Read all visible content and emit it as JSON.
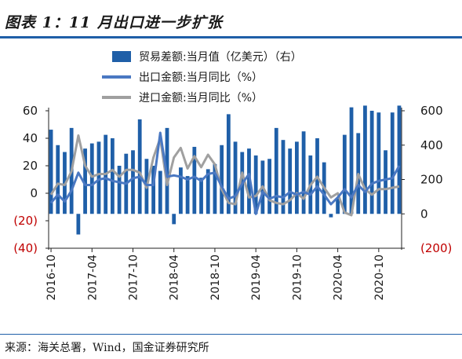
{
  "header": {
    "title": "图表 1：11 月出口进一步扩张"
  },
  "footer": {
    "source": "来源：海关总署，Wind，国金证券研究所"
  },
  "chart_data": {
    "type": "bar",
    "left_axis": {
      "range": [
        -40,
        60
      ],
      "ticks": [
        "60",
        "40",
        "20",
        "0",
        "(20)",
        "(40)"
      ],
      "tick_values": [
        60,
        40,
        20,
        0,
        -20,
        -40
      ]
    },
    "right_axis": {
      "range": [
        -200,
        600
      ],
      "ticks": [
        "600",
        "400",
        "200",
        "0",
        "(200)"
      ],
      "tick_values": [
        600,
        400,
        200,
        0,
        -200
      ]
    },
    "x_ticks": [
      "2016-10",
      "2017-04",
      "2017-10",
      "2018-04",
      "2018-10",
      "2019-04",
      "2019-10",
      "2020-04",
      "2020-10"
    ],
    "x_tick_months": [
      0,
      6,
      12,
      18,
      24,
      30,
      36,
      42,
      48
    ],
    "legend_placement": "top",
    "series": [
      {
        "name": "贸易差额:当月值（亿美元）（右）",
        "type": "bar",
        "axis": "right",
        "color": "#1f5fa8",
        "values": [
          490,
          400,
          360,
          500,
          -120,
          380,
          410,
          420,
          460,
          440,
          280,
          350,
          370,
          550,
          320,
          280,
          250,
          500,
          -60,
          270,
          220,
          390,
          210,
          260,
          290,
          400,
          580,
          420,
          360,
          380,
          340,
          310,
          320,
          500,
          430,
          380,
          420,
          480,
          340,
          440,
          300,
          -20,
          90,
          460,
          620,
          470,
          630,
          600,
          590,
          370,
          590,
          630
        ]
      },
      {
        "name": "出口金额:当月同比（%）",
        "type": "line",
        "axis": "left",
        "color": "#4a78c2",
        "values": [
          -7,
          -1,
          -6,
          2,
          15,
          6,
          6,
          10,
          11,
          9,
          8,
          7,
          11,
          12,
          6,
          6,
          44,
          12,
          13,
          12,
          10,
          12,
          9,
          14,
          15,
          5,
          -4,
          -2,
          7,
          14,
          -15,
          1,
          -4,
          -2,
          -3,
          1,
          -1,
          1,
          -1,
          5,
          -1,
          -8,
          -3,
          3,
          -3,
          6,
          1,
          7,
          9,
          10,
          11,
          20
        ]
      },
      {
        "name": "进口金额:当月同比（%）",
        "type": "line",
        "axis": "left",
        "color": "#a0a0a0",
        "values": [
          -1,
          7,
          6,
          16,
          42,
          20,
          12,
          14,
          14,
          17,
          12,
          17,
          17,
          15,
          4,
          26,
          40,
          6,
          26,
          33,
          18,
          27,
          19,
          28,
          21,
          3,
          -7,
          -8,
          15,
          -3,
          -2,
          5,
          -5,
          -7,
          -8,
          -5,
          0,
          -4,
          6,
          12,
          4,
          -3,
          0,
          -14,
          -16,
          14,
          3,
          -1,
          3,
          3,
          4,
          5
        ]
      }
    ]
  }
}
